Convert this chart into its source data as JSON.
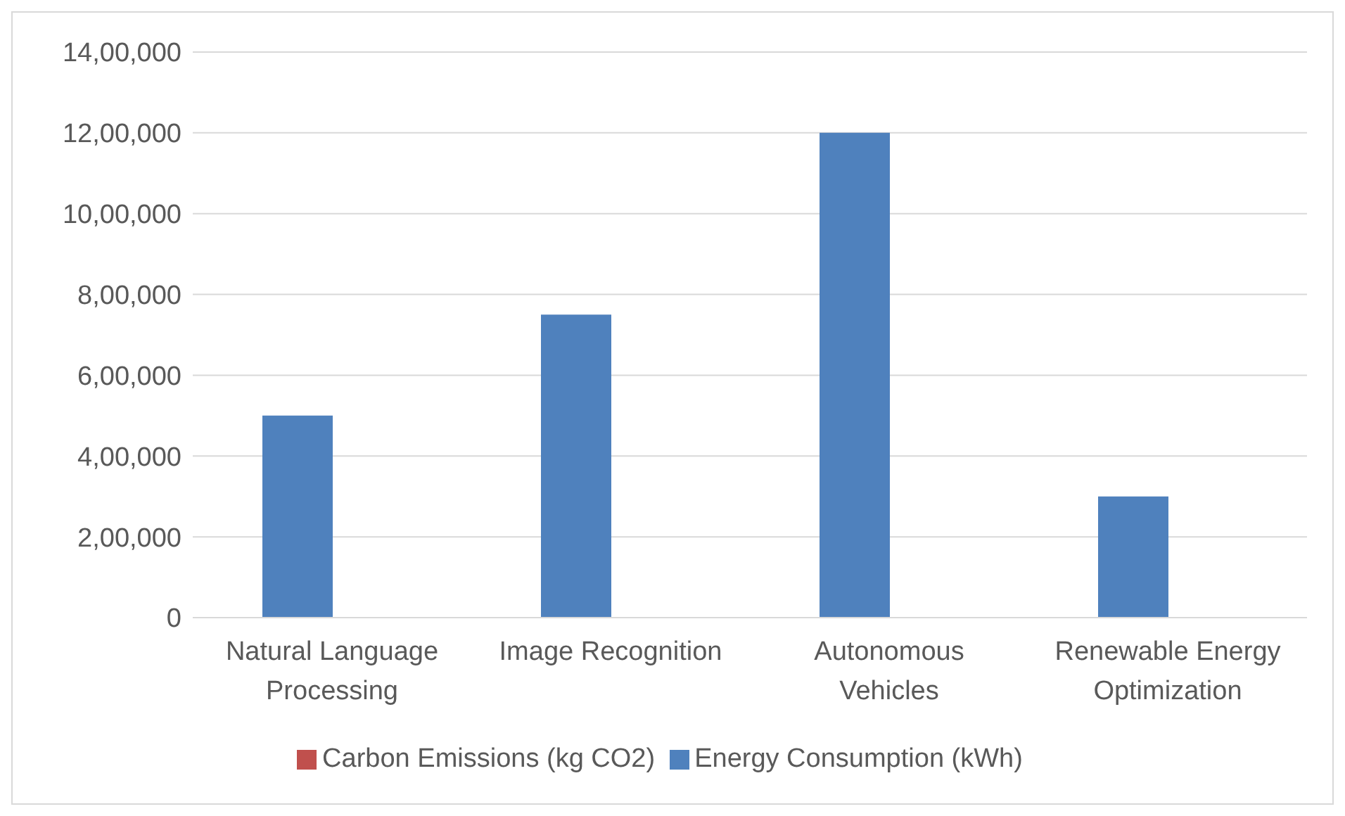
{
  "chart_data": {
    "type": "bar",
    "categories": [
      "Natural Language Processing",
      "Image Recognition",
      "Autonomous Vehicles",
      "Renewable Energy Optimization"
    ],
    "series": [
      {
        "name": "Energy Consumption (kWh)",
        "color": "#4f81bd",
        "values": [
          500000,
          750000,
          1200000,
          300000
        ]
      },
      {
        "name": "Carbon Emissions (kg CO2)",
        "color": "#c0504d",
        "values": [
          0,
          0,
          0,
          0
        ]
      }
    ],
    "ylim": [
      0,
      1400000
    ],
    "yticks": [
      {
        "value": 0,
        "label": "0"
      },
      {
        "value": 200000,
        "label": "2,00,000"
      },
      {
        "value": 400000,
        "label": "4,00,000"
      },
      {
        "value": 600000,
        "label": "6,00,000"
      },
      {
        "value": 800000,
        "label": "8,00,000"
      },
      {
        "value": 1000000,
        "label": "10,00,000"
      },
      {
        "value": 1200000,
        "label": "12,00,000"
      },
      {
        "value": 1400000,
        "label": "14,00,000"
      }
    ],
    "grid": "y",
    "legend": "bottom"
  }
}
